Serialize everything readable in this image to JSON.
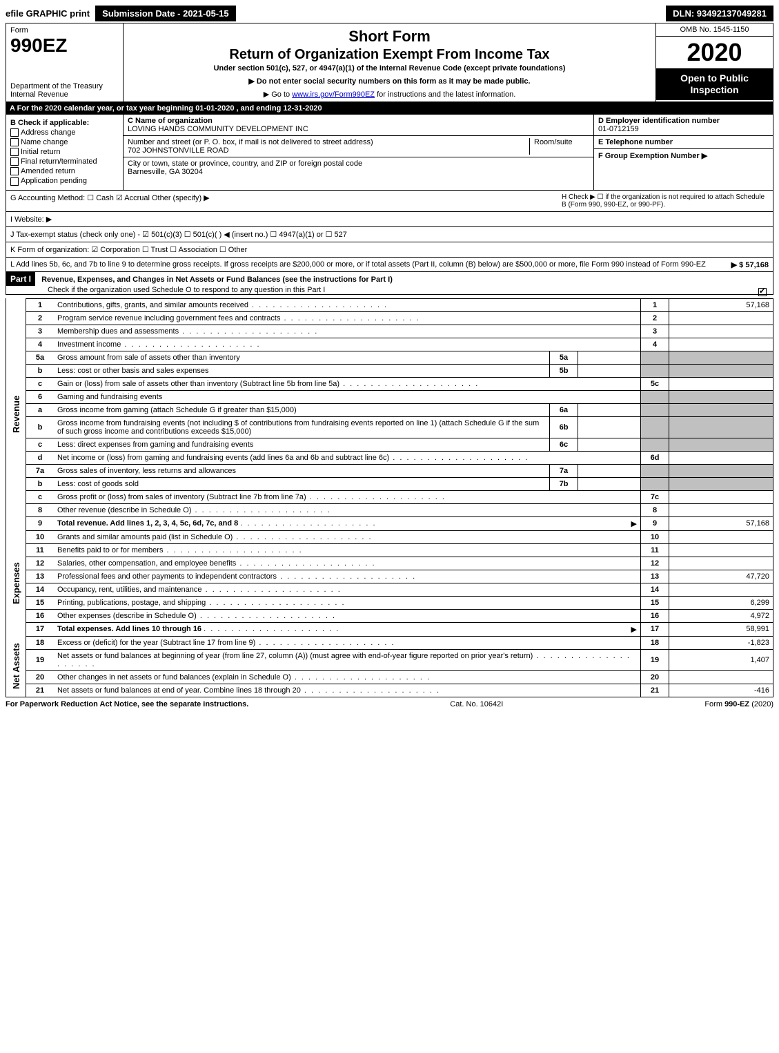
{
  "topbar": {
    "efile_label": "efile GRAPHIC print",
    "submission_label": "Submission Date - 2021-05-15",
    "dln_label": "DLN: 93492137049281"
  },
  "header": {
    "form_word": "Form",
    "form_num": "990EZ",
    "dept": "Department of the Treasury\nInternal Revenue",
    "title1": "Short Form",
    "title2": "Return of Organization Exempt From Income Tax",
    "subtitle": "Under section 501(c), 527, or 4947(a)(1) of the Internal Revenue Code (except private foundations)",
    "instr1": "▶ Do not enter social security numbers on this form as it may be made public.",
    "instr2": "▶ Go to www.irs.gov/Form990EZ for instructions and the latest information.",
    "omb": "OMB No. 1545-1150",
    "year": "2020",
    "open_public": "Open to Public Inspection"
  },
  "period_bar": "A For the 2020 calendar year, or tax year beginning 01-01-2020 , and ending 12-31-2020",
  "boxB": {
    "title": "B Check if applicable:",
    "items": [
      "Address change",
      "Name change",
      "Initial return",
      "Final return/terminated",
      "Amended return",
      "Application pending"
    ]
  },
  "boxC": {
    "label_name": "C Name of organization",
    "name": "LOVING HANDS COMMUNITY DEVELOPMENT INC",
    "label_street": "Number and street (or P. O. box, if mail is not delivered to street address)",
    "room_label": "Room/suite",
    "street": "702 JOHNSTONVILLE ROAD",
    "label_city": "City or town, state or province, country, and ZIP or foreign postal code",
    "city": "Barnesville, GA  30204"
  },
  "boxD": {
    "label": "D Employer identification number",
    "ein": "01-0712159",
    "label_phone": "E Telephone number",
    "label_group": "F Group Exemption Number  ▶"
  },
  "lineG": "G Accounting Method:   ☐ Cash   ☑ Accrual   Other (specify) ▶",
  "lineH": "H   Check ▶  ☐  if the organization is not required to attach Schedule B (Form 990, 990-EZ, or 990-PF).",
  "lineI": "I Website: ▶",
  "lineJ": "J Tax-exempt status (check only one) - ☑ 501(c)(3)  ☐ 501(c)(  ) ◀ (insert no.)  ☐ 4947(a)(1) or  ☐ 527",
  "lineK": "K Form of organization:  ☑ Corporation  ☐ Trust  ☐ Association  ☐ Other",
  "lineL": "L Add lines 5b, 6c, and 7b to line 9 to determine gross receipts. If gross receipts are $200,000 or more, or if total assets (Part II, column (B) below) are $500,000 or more, file Form 990 instead of Form 990-EZ",
  "lineL_amt": "▶ $ 57,168",
  "part1": {
    "label": "Part I",
    "title": "Revenue, Expenses, and Changes in Net Assets or Fund Balances (see the instructions for Part I)",
    "check_text": "Check if the organization used Schedule O to respond to any question in this Part I"
  },
  "sections": {
    "revenue": "Revenue",
    "expenses": "Expenses",
    "netassets": "Net Assets"
  },
  "rows": [
    {
      "n": "1",
      "d": "Contributions, gifts, grants, and similar amounts received",
      "ref": "1",
      "amt": "57,168"
    },
    {
      "n": "2",
      "d": "Program service revenue including government fees and contracts",
      "ref": "2",
      "amt": ""
    },
    {
      "n": "3",
      "d": "Membership dues and assessments",
      "ref": "3",
      "amt": ""
    },
    {
      "n": "4",
      "d": "Investment income",
      "ref": "4",
      "amt": ""
    },
    {
      "n": "5a",
      "d": "Gross amount from sale of assets other than inventory",
      "sub": "5a",
      "subval": ""
    },
    {
      "n": "b",
      "d": "Less: cost or other basis and sales expenses",
      "sub": "5b",
      "subval": ""
    },
    {
      "n": "c",
      "d": "Gain or (loss) from sale of assets other than inventory (Subtract line 5b from line 5a)",
      "ref": "5c",
      "amt": ""
    },
    {
      "n": "6",
      "d": "Gaming and fundraising events"
    },
    {
      "n": "a",
      "d": "Gross income from gaming (attach Schedule G if greater than $15,000)",
      "sub": "6a",
      "subval": ""
    },
    {
      "n": "b",
      "d": "Gross income from fundraising events (not including $            of contributions from fundraising events reported on line 1) (attach Schedule G if the sum of such gross income and contributions exceeds $15,000)",
      "sub": "6b",
      "subval": ""
    },
    {
      "n": "c",
      "d": "Less: direct expenses from gaming and fundraising events",
      "sub": "6c",
      "subval": ""
    },
    {
      "n": "d",
      "d": "Net income or (loss) from gaming and fundraising events (add lines 6a and 6b and subtract line 6c)",
      "ref": "6d",
      "amt": ""
    },
    {
      "n": "7a",
      "d": "Gross sales of inventory, less returns and allowances",
      "sub": "7a",
      "subval": ""
    },
    {
      "n": "b",
      "d": "Less: cost of goods sold",
      "sub": "7b",
      "subval": ""
    },
    {
      "n": "c",
      "d": "Gross profit or (loss) from sales of inventory (Subtract line 7b from line 7a)",
      "ref": "7c",
      "amt": ""
    },
    {
      "n": "8",
      "d": "Other revenue (describe in Schedule O)",
      "ref": "8",
      "amt": ""
    },
    {
      "n": "9",
      "d": "Total revenue. Add lines 1, 2, 3, 4, 5c, 6d, 7c, and 8",
      "ref": "9",
      "amt": "57,168",
      "bold": true,
      "arrow": true
    }
  ],
  "exp_rows": [
    {
      "n": "10",
      "d": "Grants and similar amounts paid (list in Schedule O)",
      "ref": "10",
      "amt": ""
    },
    {
      "n": "11",
      "d": "Benefits paid to or for members",
      "ref": "11",
      "amt": ""
    },
    {
      "n": "12",
      "d": "Salaries, other compensation, and employee benefits",
      "ref": "12",
      "amt": ""
    },
    {
      "n": "13",
      "d": "Professional fees and other payments to independent contractors",
      "ref": "13",
      "amt": "47,720"
    },
    {
      "n": "14",
      "d": "Occupancy, rent, utilities, and maintenance",
      "ref": "14",
      "amt": ""
    },
    {
      "n": "15",
      "d": "Printing, publications, postage, and shipping",
      "ref": "15",
      "amt": "6,299"
    },
    {
      "n": "16",
      "d": "Other expenses (describe in Schedule O)",
      "ref": "16",
      "amt": "4,972"
    },
    {
      "n": "17",
      "d": "Total expenses. Add lines 10 through 16",
      "ref": "17",
      "amt": "58,991",
      "bold": true,
      "arrow": true
    }
  ],
  "na_rows": [
    {
      "n": "18",
      "d": "Excess or (deficit) for the year (Subtract line 17 from line 9)",
      "ref": "18",
      "amt": "-1,823"
    },
    {
      "n": "19",
      "d": "Net assets or fund balances at beginning of year (from line 27, column (A)) (must agree with end-of-year figure reported on prior year's return)",
      "ref": "19",
      "amt": "1,407"
    },
    {
      "n": "20",
      "d": "Other changes in net assets or fund balances (explain in Schedule O)",
      "ref": "20",
      "amt": ""
    },
    {
      "n": "21",
      "d": "Net assets or fund balances at end of year. Combine lines 18 through 20",
      "ref": "21",
      "amt": "-416"
    }
  ],
  "footer": {
    "left": "For Paperwork Reduction Act Notice, see the separate instructions.",
    "mid": "Cat. No. 10642I",
    "right": "Form 990-EZ (2020)"
  }
}
